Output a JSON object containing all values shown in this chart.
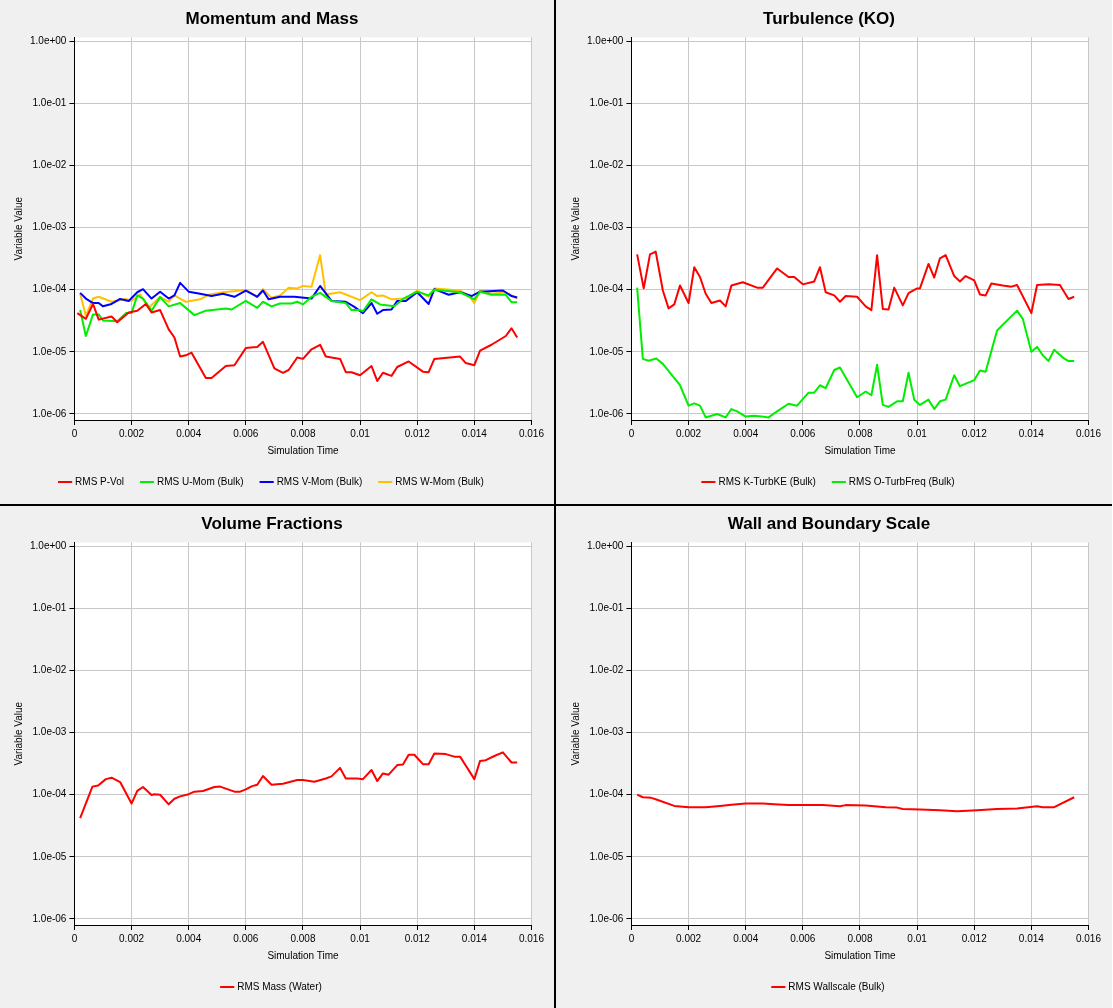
{
  "chart_data": [
    {
      "type": "line",
      "title": "Momentum and Mass",
      "xlabel": "Simulation Time",
      "ylabel": "Variable Value",
      "log": "y",
      "grid": true,
      "legend": "bottom",
      "marker": "none",
      "line_style": "solid",
      "xlim": [
        0,
        0.016
      ],
      "xticks": [
        0,
        0.002,
        0.004,
        0.006,
        0.008,
        0.01,
        0.012,
        0.014,
        0.016
      ],
      "ylim": [
        8e-07,
        1.15
      ],
      "yticks": [
        {
          "value": 1e-06,
          "label": "1.0e-06"
        },
        {
          "value": 1e-05,
          "label": "1.0e-05"
        },
        {
          "value": 0.0001,
          "label": "1.0e-04"
        },
        {
          "value": 0.001,
          "label": "1.0e-03"
        },
        {
          "value": 0.01,
          "label": "1.0e-02"
        },
        {
          "value": 0.1,
          "label": "1.0e-01"
        },
        {
          "value": 1,
          "label": "1.0e+00"
        }
      ],
      "series": [
        {
          "name": "RMS P-Vol",
          "color": "#ff0000",
          "x": [
            0.0001,
            0.0004,
            0.00065,
            0.00085,
            0.0013,
            0.0015,
            0.0019,
            0.0022,
            0.0025,
            0.0027,
            0.003,
            0.0033,
            0.0035,
            0.0037,
            0.0039,
            0.0041,
            0.0046,
            0.0048,
            0.0053,
            0.0056,
            0.006,
            0.0064,
            0.0066,
            0.007,
            0.0073,
            0.0075,
            0.0078,
            0.008,
            0.0083,
            0.0086,
            0.0088,
            0.0093,
            0.0095,
            0.0097,
            0.01,
            0.0104,
            0.0106,
            0.0108,
            0.0111,
            0.0113,
            0.0117,
            0.0122,
            0.0124,
            0.0126,
            0.0135,
            0.0137,
            0.014,
            0.0142,
            0.0146,
            0.0151,
            0.0153,
            0.0155
          ],
          "values": [
            4.2e-05,
            3.4e-05,
            5.9e-05,
            3.3e-05,
            3.7e-05,
            3e-05,
            4.3e-05,
            4.6e-05,
            5.9e-05,
            4.3e-05,
            4.7e-05,
            2.3e-05,
            1.7e-05,
            8.4e-06,
            8.8e-06,
            9.7e-06,
            3.8e-06,
            3.8e-06,
            5.9e-06,
            6.1e-06,
            1.15e-05,
            1.2e-05,
            1.45e-05,
            5.4e-06,
            4.6e-06,
            5.1e-06,
            8.1e-06,
            7.7e-06,
            1.1e-05,
            1.3e-05,
            8.4e-06,
            7.7e-06,
            4.7e-06,
            4.7e-06,
            4.2e-06,
            5.9e-06,
            3.4e-06,
            4.6e-06,
            4.1e-06,
            5.7e-06,
            7e-06,
            4.8e-06,
            4.7e-06,
            7.7e-06,
            8.4e-06,
            6.6e-06,
            6.1e-06,
            1.05e-05,
            1.3e-05,
            1.8e-05,
            2.4e-05,
            1.7e-05
          ]
        },
        {
          "name": "RMS U-Mom (Bulk)",
          "color": "#00ee00",
          "x": [
            0.0002,
            0.0004,
            0.00065,
            0.00085,
            0.001,
            0.0015,
            0.0018,
            0.002,
            0.0022,
            0.0024,
            0.0027,
            0.003,
            0.0033,
            0.0037,
            0.0039,
            0.0042,
            0.0046,
            0.0053,
            0.0055,
            0.006,
            0.0064,
            0.0066,
            0.0069,
            0.0072,
            0.0076,
            0.0078,
            0.008,
            0.0083,
            0.0086,
            0.009,
            0.0095,
            0.0097,
            0.01,
            0.0101,
            0.0104,
            0.0107,
            0.0112,
            0.0115,
            0.012,
            0.0124,
            0.0126,
            0.0135,
            0.014,
            0.0142,
            0.0146,
            0.0151,
            0.0153,
            0.0155
          ],
          "values": [
            4.7e-05,
            1.8e-05,
            4e-05,
            4e-05,
            3.2e-05,
            3.1e-05,
            4.2e-05,
            4.2e-05,
            8.1e-05,
            7.2e-05,
            4.6e-05,
            7.6e-05,
            5.4e-05,
            6.1e-05,
            5.1e-05,
            3.9e-05,
            4.6e-05,
            5e-05,
            4.8e-05,
            6.6e-05,
            5.1e-05,
            6.4e-05,
            5.4e-05,
            6e-05,
            6e-05,
            6.4e-05,
            5.8e-05,
            7.7e-05,
            8.9e-05,
            6.6e-05,
            6.1e-05,
            4.7e-05,
            4.7e-05,
            4.5e-05,
            7e-05,
            5.8e-05,
            5.4e-05,
            7.1e-05,
            9.3e-05,
            8.1e-05,
            0.0001,
            9.1e-05,
            7e-05,
            9.3e-05,
            8.3e-05,
            8.3e-05,
            6.3e-05,
            6.3e-05
          ]
        },
        {
          "name": "RMS V-Mom (Bulk)",
          "color": "#0000ff",
          "x": [
            0.0002,
            0.0004,
            0.00065,
            0.00085,
            0.001,
            0.0013,
            0.0016,
            0.0019,
            0.0022,
            0.0024,
            0.0027,
            0.003,
            0.0033,
            0.0035,
            0.0037,
            0.004,
            0.0044,
            0.0048,
            0.0052,
            0.0056,
            0.006,
            0.0064,
            0.0066,
            0.0068,
            0.0072,
            0.0077,
            0.0083,
            0.0086,
            0.009,
            0.0095,
            0.0098,
            0.0101,
            0.0104,
            0.0106,
            0.0108,
            0.0111,
            0.0113,
            0.0116,
            0.012,
            0.0124,
            0.0126,
            0.0131,
            0.0135,
            0.0139,
            0.0142,
            0.015,
            0.0153,
            0.0155
          ],
          "values": [
            8.9e-05,
            7.2e-05,
            6.1e-05,
            6.1e-05,
            5.4e-05,
            5.9e-05,
            7.1e-05,
            6.6e-05,
            9.1e-05,
            0.000102,
            7.2e-05,
            9.3e-05,
            7.2e-05,
            8.1e-05,
            0.000129,
            9.3e-05,
            8.6e-05,
            7.9e-05,
            8.6e-05,
            7.7e-05,
            9.7e-05,
            7.7e-05,
            9.7e-05,
            7e-05,
            7.7e-05,
            7.7e-05,
            7.2e-05,
            0.000115,
            6.6e-05,
            6.4e-05,
            5.3e-05,
            4.2e-05,
            6.1e-05,
            4.1e-05,
            4.7e-05,
            4.8e-05,
            6.6e-05,
            6.6e-05,
            9.1e-05,
            5.9e-05,
            0.000102,
            8.3e-05,
            9.1e-05,
            7.9e-05,
            9.3e-05,
            9.7e-05,
            7.9e-05,
            7.5e-05
          ]
        },
        {
          "name": "RMS W-Mom (Bulk)",
          "color": "#ffc000",
          "x": [
            0.0002,
            0.0004,
            0.00065,
            0.00085,
            0.0013,
            0.0018,
            0.002,
            0.0023,
            0.0026,
            0.003,
            0.0033,
            0.0035,
            0.0039,
            0.0044,
            0.0047,
            0.0052,
            0.006,
            0.0064,
            0.0066,
            0.0069,
            0.0072,
            0.0075,
            0.0078,
            0.008,
            0.0083,
            0.0086,
            0.0088,
            0.0093,
            0.01,
            0.0104,
            0.0106,
            0.0108,
            0.0111,
            0.0116,
            0.012,
            0.0124,
            0.0126,
            0.0135,
            0.0138,
            0.014,
            0.0142,
            0.0146,
            0.0151,
            0.0155
          ],
          "values": [
            8.6e-05,
            3.8e-05,
            7.2e-05,
            7.7e-05,
            6.4e-05,
            7.1e-05,
            6.6e-05,
            8.4e-05,
            5.1e-05,
            7.7e-05,
            6.4e-05,
            8.1e-05,
            6.4e-05,
            7e-05,
            8.3e-05,
            9.1e-05,
            9.9e-05,
            7.7e-05,
            0.000102,
            7.4e-05,
            8.1e-05,
            0.000108,
            0.000105,
            0.000115,
            0.000112,
            0.00036,
            8.4e-05,
            9.1e-05,
            6.8e-05,
            9.1e-05,
            7.9e-05,
            8.1e-05,
            7e-05,
            7.2e-05,
            9.7e-05,
            7.7e-05,
            0.000105,
            9.7e-05,
            8.1e-05,
            6.1e-05,
            9.7e-05,
            8.6e-05,
            9.1e-05,
            7.2e-05
          ]
        }
      ]
    },
    {
      "type": "line",
      "title": "Turbulence (KO)",
      "xlabel": "Simulation Time",
      "ylabel": "Variable Value",
      "log": "y",
      "grid": true,
      "legend": "bottom",
      "marker": "none",
      "line_style": "solid",
      "xlim": [
        0,
        0.016
      ],
      "xticks": [
        0,
        0.002,
        0.004,
        0.006,
        0.008,
        0.01,
        0.012,
        0.014,
        0.016
      ],
      "ylim": [
        8e-07,
        1.15
      ],
      "yticks": [
        {
          "value": 1e-06,
          "label": "1.0e-06"
        },
        {
          "value": 1e-05,
          "label": "1.0e-05"
        },
        {
          "value": 0.0001,
          "label": "1.0e-04"
        },
        {
          "value": 0.001,
          "label": "1.0e-03"
        },
        {
          "value": 0.01,
          "label": "1.0e-02"
        },
        {
          "value": 0.1,
          "label": "1.0e-01"
        },
        {
          "value": 1,
          "label": "1.0e+00"
        }
      ],
      "series": [
        {
          "name": "RMS K-TurbKE (Bulk)",
          "color": "#ff0000",
          "x": [
            0.0002,
            0.00043,
            0.00065,
            0.00085,
            0.0011,
            0.0013,
            0.0015,
            0.0017,
            0.002,
            0.0022,
            0.0024,
            0.0026,
            0.0028,
            0.0031,
            0.0033,
            0.0035,
            0.0039,
            0.0044,
            0.0046,
            0.0051,
            0.0055,
            0.0057,
            0.006,
            0.0064,
            0.0066,
            0.0068,
            0.0071,
            0.0073,
            0.0075,
            0.0079,
            0.0082,
            0.0084,
            0.0086,
            0.0088,
            0.009,
            0.0092,
            0.0095,
            0.0097,
            0.01,
            0.0101,
            0.0104,
            0.0106,
            0.0108,
            0.011,
            0.0113,
            0.0115,
            0.0117,
            0.012,
            0.0122,
            0.0124,
            0.0126,
            0.013,
            0.0133,
            0.0135,
            0.014,
            0.0142,
            0.0146,
            0.015,
            0.0153,
            0.0155
          ],
          "values": [
            0.00037,
            0.000105,
            0.00037,
            0.00041,
            9.7e-05,
            5e-05,
            5.8e-05,
            0.000117,
            6.1e-05,
            0.00023,
            0.00016,
            8.6e-05,
            6.1e-05,
            6.7e-05,
            5.4e-05,
            0.000117,
            0.000132,
            0.000108,
            0.000108,
            0.00022,
            0.00016,
            0.00016,
            0.000122,
            0.000136,
            0.00023,
            9.1e-05,
            8.1e-05,
            6.4e-05,
            7.9e-05,
            7.7e-05,
            5.4e-05,
            4.7e-05,
            0.00036,
            4.9e-05,
            4.8e-05,
            0.000108,
            5.6e-05,
            8.8e-05,
            0.000105,
            0.000105,
            0.00026,
            0.000157,
            0.00032,
            0.00036,
            0.000166,
            0.000136,
            0.000166,
            0.000141,
            8.4e-05,
            8.1e-05,
            0.000126,
            0.000117,
            0.000112,
            0.000119,
            4.2e-05,
            0.000119,
            0.000122,
            0.000119,
            7.1e-05,
            7.7e-05
          ]
        },
        {
          "name": "RMS O-TurbFreq (Bulk)",
          "color": "#00ee00",
          "x": [
            0.0002,
            0.0004,
            0.0006,
            0.00087,
            0.0011,
            0.0017,
            0.002,
            0.0022,
            0.0024,
            0.0026,
            0.003,
            0.0033,
            0.0035,
            0.0037,
            0.004,
            0.0043,
            0.0048,
            0.0051,
            0.0055,
            0.0058,
            0.0062,
            0.0064,
            0.0066,
            0.0068,
            0.0071,
            0.0073,
            0.0079,
            0.0082,
            0.0084,
            0.0086,
            0.0088,
            0.009,
            0.0093,
            0.0095,
            0.0097,
            0.0099,
            0.0101,
            0.0104,
            0.0106,
            0.0108,
            0.011,
            0.0113,
            0.0115,
            0.012,
            0.0122,
            0.0124,
            0.0128,
            0.0135,
            0.0137,
            0.014,
            0.0142,
            0.0144,
            0.0146,
            0.0148,
            0.0151,
            0.0153,
            0.0155
          ],
          "values": [
            0.000108,
            7.7e-06,
            7.2e-06,
            7.8e-06,
            6.4e-06,
            2.9e-06,
            1.36e-06,
            1.48e-06,
            1.36e-06,
            8.8e-07,
            1e-06,
            8.8e-07,
            1.2e-06,
            1.1e-06,
            9.1e-07,
            9.4e-07,
            8.8e-07,
            1.1e-06,
            1.46e-06,
            1.36e-06,
            2.2e-06,
            2.2e-06,
            2.9e-06,
            2.6e-06,
            5.1e-06,
            5.6e-06,
            1.86e-06,
            2.3e-06,
            2e-06,
            6.2e-06,
            1.4e-06,
            1.3e-06,
            1.6e-06,
            1.6e-06,
            4.6e-06,
            1.7e-06,
            1.4e-06,
            1.7e-06,
            1.2e-06,
            1.6e-06,
            1.7e-06,
            4.2e-06,
            2.8e-06,
            3.5e-06,
            5e-06,
            4.8e-06,
            2.2e-05,
            4.6e-05,
            3.4e-05,
            1e-05,
            1.2e-05,
            8.8e-06,
            7.1e-06,
            1.08e-05,
            8.1e-06,
            7.1e-06,
            7.1e-06
          ]
        }
      ]
    },
    {
      "type": "line",
      "title": "Volume Fractions",
      "xlabel": "Simulation Time",
      "ylabel": "Variable Value",
      "log": "y",
      "grid": true,
      "legend": "bottom",
      "marker": "none",
      "line_style": "solid",
      "xlim": [
        0,
        0.016
      ],
      "xticks": [
        0,
        0.002,
        0.004,
        0.006,
        0.008,
        0.01,
        0.012,
        0.014,
        0.016
      ],
      "ylim": [
        8e-07,
        1.15
      ],
      "yticks": [
        {
          "value": 1e-06,
          "label": "1.0e-06"
        },
        {
          "value": 1e-05,
          "label": "1.0e-05"
        },
        {
          "value": 0.0001,
          "label": "1.0e-04"
        },
        {
          "value": 0.001,
          "label": "1.0e-03"
        },
        {
          "value": 0.01,
          "label": "1.0e-02"
        },
        {
          "value": 0.1,
          "label": "1.0e-01"
        },
        {
          "value": 1,
          "label": "1.0e+00"
        }
      ],
      "series": [
        {
          "name": "RMS Mass (Water)",
          "color": "#ff0000",
          "x": [
            0.0002,
            0.00063,
            0.00083,
            0.0011,
            0.0013,
            0.0016,
            0.002,
            0.0022,
            0.0024,
            0.0027,
            0.0028,
            0.003,
            0.0033,
            0.0035,
            0.0037,
            0.004,
            0.0042,
            0.0045,
            0.0049,
            0.0051,
            0.0056,
            0.0058,
            0.006,
            0.0062,
            0.0064,
            0.0066,
            0.0069,
            0.0073,
            0.0078,
            0.008,
            0.0084,
            0.0088,
            0.009,
            0.0093,
            0.0095,
            0.0099,
            0.0101,
            0.0104,
            0.0106,
            0.0108,
            0.011,
            0.0113,
            0.0115,
            0.0117,
            0.0119,
            0.0122,
            0.0124,
            0.0126,
            0.013,
            0.0133,
            0.0135,
            0.014,
            0.0142,
            0.0144,
            0.0147,
            0.015,
            0.0153,
            0.0155
          ],
          "values": [
            4.2e-05,
            0.000135,
            0.000141,
            0.000178,
            0.000188,
            0.00016,
            7.2e-05,
            0.000115,
            0.000133,
            9.9e-05,
            0.000102,
            0.0001,
            7e-05,
            8.6e-05,
            9.4e-05,
            0.000102,
            0.000112,
            0.000115,
            0.000133,
            0.000135,
            0.000112,
            0.000112,
            0.000122,
            0.000136,
            0.000145,
            0.0002,
            0.000145,
            0.00015,
            0.000172,
            0.000172,
            0.000162,
            0.000182,
            0.000197,
            0.00027,
            0.000182,
            0.000182,
            0.000178,
            0.00025,
            0.000166,
            0.00022,
            0.00021,
            0.0003,
            0.000305,
            0.00044,
            0.00044,
            0.00031,
            0.00031,
            0.00046,
            0.00045,
            0.00041,
            0.00041,
            0.000178,
            0.00035,
            0.00036,
            0.00042,
            0.00048,
            0.00033,
            0.00033
          ]
        }
      ]
    },
    {
      "type": "line",
      "title": "Wall and Boundary Scale",
      "xlabel": "Simulation Time",
      "ylabel": "Variable Value",
      "log": "y",
      "grid": true,
      "legend": "bottom",
      "marker": "none",
      "line_style": "solid",
      "xlim": [
        0,
        0.016
      ],
      "xticks": [
        0,
        0.002,
        0.004,
        0.006,
        0.008,
        0.01,
        0.012,
        0.014,
        0.016
      ],
      "ylim": [
        8e-07,
        1.15
      ],
      "yticks": [
        {
          "value": 1e-06,
          "label": "1.0e-06"
        },
        {
          "value": 1e-05,
          "label": "1.0e-05"
        },
        {
          "value": 0.0001,
          "label": "1.0e-04"
        },
        {
          "value": 0.001,
          "label": "1.0e-03"
        },
        {
          "value": 0.01,
          "label": "1.0e-02"
        },
        {
          "value": 0.1,
          "label": "1.0e-01"
        },
        {
          "value": 1,
          "label": "1.0e+00"
        }
      ],
      "series": [
        {
          "name": "RMS Wallscale (Bulk)",
          "color": "#ff0000",
          "x": [
            0.0002,
            0.0004,
            0.0007,
            0.0009,
            0.0015,
            0.002,
            0.0026,
            0.0031,
            0.0035,
            0.004,
            0.0046,
            0.005,
            0.0055,
            0.0067,
            0.0073,
            0.0075,
            0.0082,
            0.0089,
            0.0093,
            0.0095,
            0.0101,
            0.0108,
            0.0114,
            0.0121,
            0.0128,
            0.0135,
            0.0142,
            0.0144,
            0.0148,
            0.0155
          ],
          "values": [
            0.0001,
            9.1e-05,
            8.9e-05,
            8.3e-05,
            6.6e-05,
            6.3e-05,
            6.3e-05,
            6.6e-05,
            6.9e-05,
            7.2e-05,
            7.2e-05,
            7e-05,
            6.8e-05,
            6.8e-05,
            6.5e-05,
            6.8e-05,
            6.7e-05,
            6.3e-05,
            6.2e-05,
            5.9e-05,
            5.8e-05,
            5.6e-05,
            5.4e-05,
            5.6e-05,
            5.9e-05,
            6e-05,
            6.5e-05,
            6.3e-05,
            6.3e-05,
            9.1e-05
          ]
        }
      ]
    }
  ]
}
